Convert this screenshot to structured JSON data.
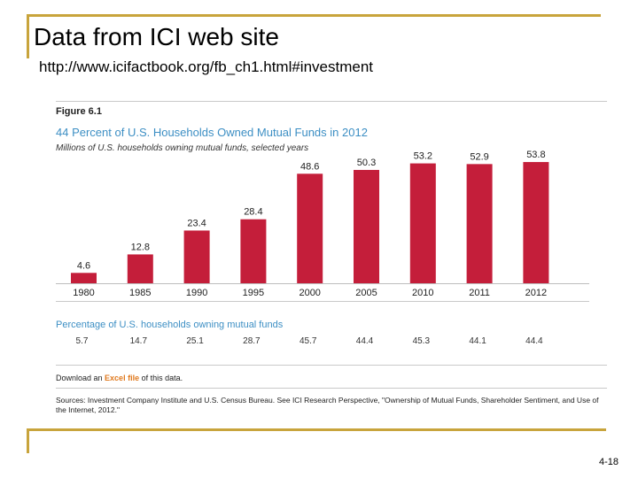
{
  "slide": {
    "title": "Data from ICI web site",
    "url": "http://www.icifactbook.org/fb_ch1.html#investment",
    "page_number": "4-18"
  },
  "figure": {
    "label": "Figure 6.1",
    "pct_title": "Percentage of U.S. households owning mutual funds",
    "download_prefix": "Download an ",
    "download_link": "Excel file",
    "download_suffix": " of this data.",
    "sources": "Sources: Investment Company Institute and U.S. Census Bureau. See ICI Research Perspective, \"Ownership of Mutual Funds, Shareholder Sentiment, and Use of the Internet, 2012.\""
  },
  "chart_data": {
    "type": "bar",
    "title": "44 Percent of U.S. Households Owned Mutual Funds in 2012",
    "subtitle": "Millions of U.S. households owning mutual funds, selected years",
    "xlabel": "",
    "ylabel": "",
    "ylim": [
      0,
      60
    ],
    "categories": [
      "1980",
      "1985",
      "1990",
      "1995",
      "2000",
      "2005",
      "2010",
      "2011",
      "2012"
    ],
    "values": [
      4.6,
      12.8,
      23.4,
      28.4,
      48.6,
      50.3,
      53.2,
      52.9,
      53.8
    ],
    "value_labels": [
      "4.6",
      "12.8",
      "23.4",
      "28.4",
      "48.6",
      "50.3",
      "53.2",
      "52.9",
      "53.8"
    ],
    "percentages": [
      "5.7",
      "14.7",
      "25.1",
      "28.7",
      "45.7",
      "44.4",
      "45.3",
      "44.1",
      "44.4"
    ],
    "bar_color": "#c41e3a"
  }
}
